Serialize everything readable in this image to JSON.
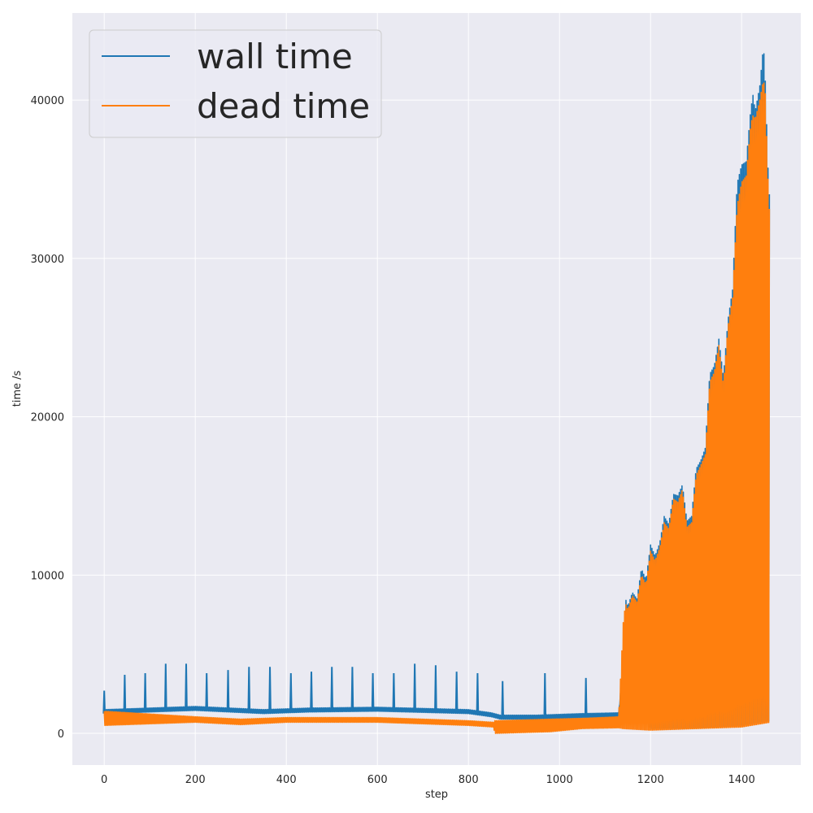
{
  "chart_data": {
    "type": "line",
    "title": "",
    "xlabel": "step",
    "ylabel": "time /s",
    "xlim": [
      -70,
      1530
    ],
    "ylim": [
      -2000,
      45500
    ],
    "xticks": [
      0,
      200,
      400,
      600,
      800,
      1000,
      1200,
      1400
    ],
    "yticks": [
      0,
      10000,
      20000,
      30000,
      40000
    ],
    "grid": true,
    "legend_position": "top-left",
    "series": [
      {
        "name": "wall time",
        "color": "#1f77b4",
        "baseline_points": [
          [
            0,
            1250
          ],
          [
            200,
            1450
          ],
          [
            350,
            1250
          ],
          [
            450,
            1350
          ],
          [
            600,
            1400
          ],
          [
            800,
            1250
          ],
          [
            850,
            1050
          ],
          [
            870,
            900
          ],
          [
            950,
            900
          ],
          [
            1050,
            1000
          ],
          [
            1130,
            1050
          ],
          [
            1140,
            4200
          ],
          [
            1200,
            300
          ],
          [
            1300,
            350
          ],
          [
            1400,
            500
          ],
          [
            1462,
            800
          ]
        ],
        "peak_points": [
          [
            1140,
            4800
          ],
          [
            1145,
            8500
          ],
          [
            1150,
            8000
          ],
          [
            1160,
            8900
          ],
          [
            1170,
            8500
          ],
          [
            1180,
            10400
          ],
          [
            1190,
            9700
          ],
          [
            1200,
            11900
          ],
          [
            1210,
            11200
          ],
          [
            1220,
            12000
          ],
          [
            1230,
            13700
          ],
          [
            1240,
            13200
          ],
          [
            1250,
            15100
          ],
          [
            1260,
            15000
          ],
          [
            1270,
            15700
          ],
          [
            1280,
            13400
          ],
          [
            1290,
            13700
          ],
          [
            1300,
            16700
          ],
          [
            1310,
            17200
          ],
          [
            1320,
            18000
          ],
          [
            1330,
            22700
          ],
          [
            1340,
            23200
          ],
          [
            1350,
            24900
          ],
          [
            1360,
            22500
          ],
          [
            1370,
            26100
          ],
          [
            1380,
            28000
          ],
          [
            1390,
            34700
          ],
          [
            1400,
            35900
          ],
          [
            1410,
            36100
          ],
          [
            1420,
            39400
          ],
          [
            1425,
            40300
          ],
          [
            1430,
            39300
          ],
          [
            1440,
            40900
          ],
          [
            1448,
            43500
          ],
          [
            1452,
            41200
          ],
          [
            1458,
            35700
          ],
          [
            1462,
            33500
          ]
        ],
        "spikes": [
          [
            0,
            2700
          ],
          [
            45,
            3700
          ],
          [
            90,
            3800
          ],
          [
            135,
            4400
          ],
          [
            180,
            4400
          ],
          [
            225,
            3800
          ],
          [
            272,
            4000
          ],
          [
            318,
            4200
          ],
          [
            364,
            4200
          ],
          [
            410,
            3800
          ],
          [
            455,
            3900
          ],
          [
            500,
            4200
          ],
          [
            545,
            4200
          ],
          [
            590,
            3800
          ],
          [
            636,
            3800
          ],
          [
            682,
            4400
          ],
          [
            728,
            4300
          ],
          [
            774,
            3900
          ],
          [
            820,
            3800
          ],
          [
            875,
            3300
          ],
          [
            968,
            3800
          ],
          [
            1058,
            3500
          ]
        ]
      },
      {
        "name": "dead time",
        "color": "#ff7f0e",
        "baseline_points": [
          [
            0,
            500
          ],
          [
            200,
            700
          ],
          [
            300,
            550
          ],
          [
            400,
            700
          ],
          [
            600,
            700
          ],
          [
            800,
            500
          ],
          [
            855,
            400
          ],
          [
            858,
            0
          ],
          [
            980,
            100
          ],
          [
            1050,
            300
          ],
          [
            1130,
            350
          ],
          [
            1140,
            300
          ],
          [
            1200,
            200
          ],
          [
            1300,
            300
          ],
          [
            1400,
            400
          ],
          [
            1462,
            700
          ]
        ],
        "peak_points": [
          [
            0,
            1400
          ],
          [
            200,
            1050
          ],
          [
            300,
            900
          ],
          [
            400,
            1000
          ],
          [
            600,
            1000
          ],
          [
            800,
            800
          ],
          [
            855,
            700
          ],
          [
            858,
            800
          ],
          [
            980,
            900
          ],
          [
            1050,
            950
          ],
          [
            1130,
            1050
          ],
          [
            1140,
            7000
          ],
          [
            1145,
            8200
          ],
          [
            1150,
            7800
          ],
          [
            1160,
            8700
          ],
          [
            1170,
            8300
          ],
          [
            1180,
            10000
          ],
          [
            1190,
            9400
          ],
          [
            1200,
            11500
          ],
          [
            1210,
            10900
          ],
          [
            1220,
            11700
          ],
          [
            1230,
            13300
          ],
          [
            1240,
            12900
          ],
          [
            1250,
            14800
          ],
          [
            1260,
            14600
          ],
          [
            1270,
            15400
          ],
          [
            1280,
            13000
          ],
          [
            1290,
            13300
          ],
          [
            1300,
            16300
          ],
          [
            1310,
            16900
          ],
          [
            1320,
            17600
          ],
          [
            1330,
            22200
          ],
          [
            1340,
            22800
          ],
          [
            1350,
            24500
          ],
          [
            1360,
            22000
          ],
          [
            1370,
            25700
          ],
          [
            1380,
            27500
          ],
          [
            1390,
            33300
          ],
          [
            1400,
            34800
          ],
          [
            1410,
            35200
          ],
          [
            1420,
            38500
          ],
          [
            1425,
            39000
          ],
          [
            1430,
            38800
          ],
          [
            1440,
            40000
          ],
          [
            1448,
            41300
          ],
          [
            1452,
            40400
          ],
          [
            1458,
            35000
          ],
          [
            1462,
            32500
          ]
        ]
      }
    ]
  }
}
